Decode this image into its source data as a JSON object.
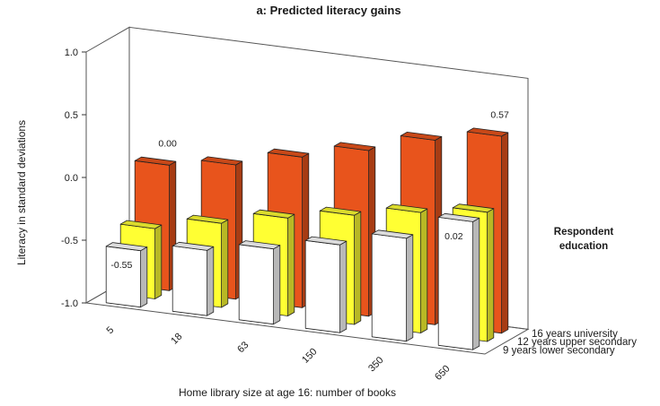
{
  "chart_data": {
    "type": "bar",
    "variant": "3d-grouped-bar",
    "title": "a: Predicted literacy gains",
    "xlabel": "Home library size at age 16: number of books",
    "ylabel": "Literacy in standard deviations",
    "ylim": [
      -1.0,
      1.0
    ],
    "yticks": [
      "1.0",
      "0.5",
      "0.0",
      "-0.5",
      "-1.0"
    ],
    "categories": [
      "5",
      "18",
      "63",
      "150",
      "350",
      "650"
    ],
    "legend_title": "Respondent education",
    "series": [
      {
        "name": "9 years lower secondary",
        "color": "#ffffff",
        "values": [
          -0.55,
          -0.48,
          -0.4,
          -0.3,
          -0.18,
          0.02
        ]
      },
      {
        "name": "12 years upper secondary",
        "color": "#ffff33",
        "values": [
          -0.44,
          -0.33,
          -0.22,
          -0.13,
          -0.04,
          0.03
        ]
      },
      {
        "name": "16 years university",
        "color": "#e8541c",
        "values": [
          0.0,
          0.07,
          0.2,
          0.32,
          0.47,
          0.57
        ]
      }
    ],
    "data_labels": [
      {
        "series": 0,
        "index": 0,
        "text": "-0.55"
      },
      {
        "series": 0,
        "index": 5,
        "text": "0.02"
      },
      {
        "series": 2,
        "index": 0,
        "text": "0.00"
      },
      {
        "series": 2,
        "index": 5,
        "text": "0.57"
      }
    ],
    "grid": false
  }
}
